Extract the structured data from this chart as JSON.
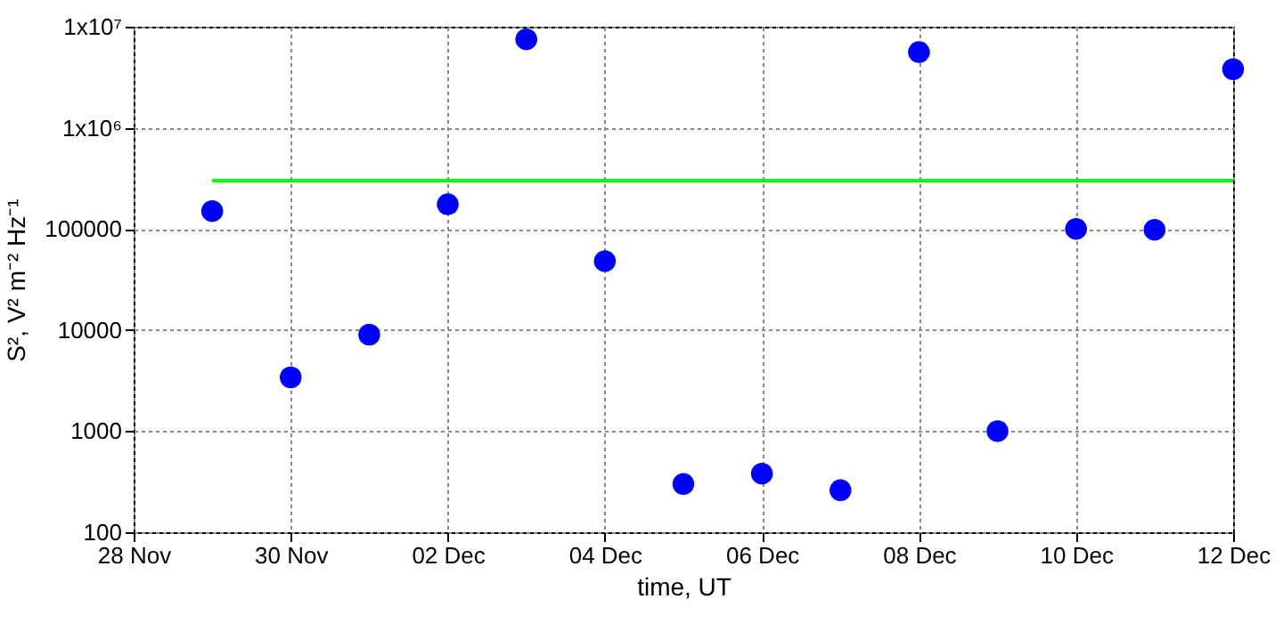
{
  "chart_data": {
    "type": "scatter",
    "xlabel": "time, UT",
    "ylabel": "S², V² m⁻² Hz⁻¹",
    "log": "y",
    "grid": true,
    "marker": "circle",
    "xlim": [
      "--11-28",
      "--12-12"
    ],
    "xticks": [
      {
        "value": "--11-28",
        "label": "28 Nov"
      },
      {
        "value": "--11-30",
        "label": "30 Nov"
      },
      {
        "value": "--12-02",
        "label": "02 Dec"
      },
      {
        "value": "--12-04",
        "label": "04 Dec"
      },
      {
        "value": "--12-06",
        "label": "06 Dec"
      },
      {
        "value": "--12-08",
        "label": "08 Dec"
      },
      {
        "value": "--12-10",
        "label": "10 Dec"
      },
      {
        "value": "--12-12",
        "label": "12 Dec"
      }
    ],
    "ylim": [
      100,
      10000000
    ],
    "yticks": [
      100,
      1000,
      10000,
      100000,
      {
        "value": 1000000,
        "label": "1x10⁶"
      },
      {
        "value": 10000000,
        "label": "1x10⁷"
      }
    ],
    "series": [
      {
        "type": "line",
        "color": "#00ff00",
        "line_style": "solid",
        "marker": "none",
        "x": [
          "--11-29",
          "--12-12"
        ],
        "values": [
          300000,
          300000
        ]
      },
      {
        "color": "#0000ff",
        "x": [
          "--11-29",
          "--11-30",
          "--12-01",
          "--12-02",
          "--12-03",
          "--12-04",
          "--12-05",
          "--12-06",
          "--12-07",
          "--12-08",
          "--12-09",
          "--12-10",
          "--12-11",
          "--12-12"
        ],
        "values": [
          150000,
          3400,
          9000,
          175000,
          7500000,
          48000,
          300,
          380,
          260,
          5600000,
          1000,
          100000,
          98000,
          3800000
        ]
      }
    ]
  }
}
